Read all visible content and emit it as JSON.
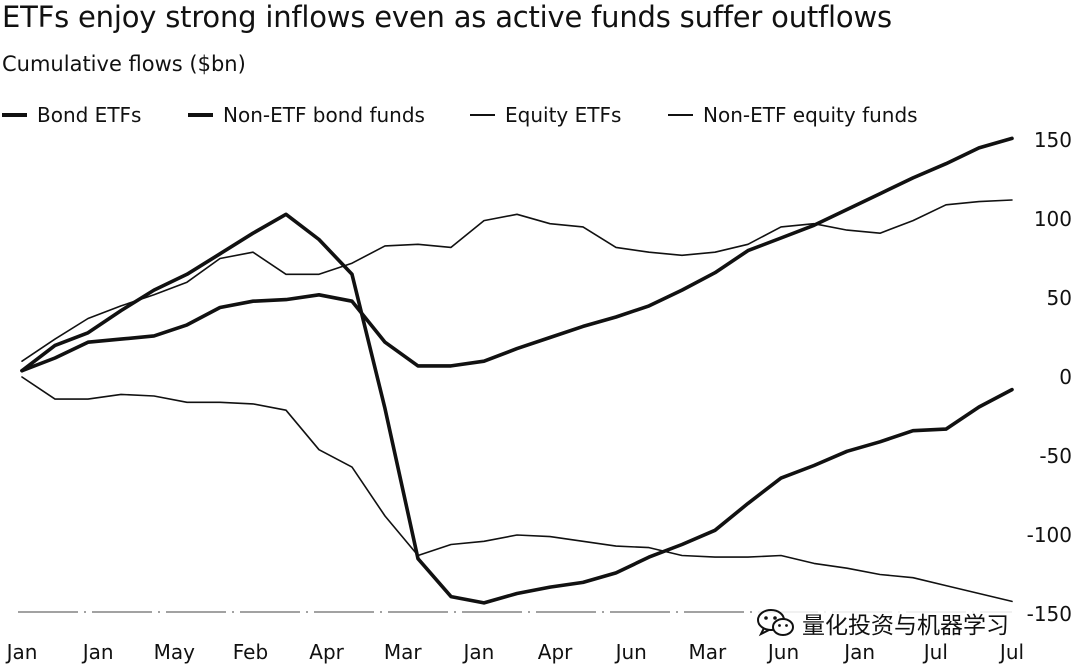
{
  "chart_data": {
    "type": "line",
    "title": "ETFs enjoy strong inflows even as active funds suffer outflows",
    "subtitle": "Cumulative flows ($bn)",
    "x_tick_labels": [
      "Jan",
      "Jan",
      "May",
      "Feb",
      "Apr",
      "Mar",
      "Jan",
      "Apr",
      "Jun",
      "Mar",
      "Jun",
      "Jan",
      "Jul",
      "Jul"
    ],
    "y_ticks": [
      150,
      100,
      50,
      0,
      -50,
      -100,
      -150
    ],
    "ylim": [
      -150,
      150
    ],
    "grid": false,
    "legend_position": "top",
    "y_axis_side": "right",
    "n_points": 31,
    "series": [
      {
        "name": "Bond ETFs",
        "weight": "thick",
        "values": [
          4,
          12,
          22,
          24,
          26,
          33,
          44,
          48,
          49,
          52,
          48,
          22,
          7,
          7,
          10,
          18,
          25,
          32,
          38,
          45,
          55,
          66,
          80,
          88,
          96,
          106,
          116,
          126,
          135,
          145,
          151
        ]
      },
      {
        "name": "Non-ETF bond funds",
        "weight": "thick",
        "values": [
          4,
          20,
          28,
          42,
          55,
          65,
          78,
          91,
          103,
          87,
          65,
          -20,
          -115,
          -139,
          -143,
          -137,
          -133,
          -130,
          -124,
          -114,
          -106,
          -97,
          -80,
          -64,
          -56,
          -47,
          -41,
          -34,
          -33,
          -19,
          -8
        ]
      },
      {
        "name": "Equity ETFs",
        "weight": "thin",
        "values": [
          10,
          24,
          37,
          45,
          52,
          60,
          75,
          79,
          65,
          65,
          72,
          83,
          84,
          82,
          99,
          103,
          97,
          95,
          82,
          79,
          77,
          79,
          84,
          95,
          97,
          93,
          91,
          99,
          109,
          111,
          112
        ]
      },
      {
        "name": "Non-ETF equity funds",
        "weight": "thin",
        "values": [
          0,
          -14,
          -14,
          -11,
          -12,
          -16,
          -16,
          -17,
          -21,
          -46,
          -57,
          -88,
          -113,
          -106,
          -104,
          -100,
          -101,
          -104,
          -107,
          -108,
          -113,
          -114,
          -114,
          -113,
          -118,
          -121,
          -125,
          -127,
          -132,
          -137,
          -142
        ]
      }
    ]
  },
  "watermark": {
    "text": "量化投资与机器学习",
    "icon": "wechat-icon"
  }
}
